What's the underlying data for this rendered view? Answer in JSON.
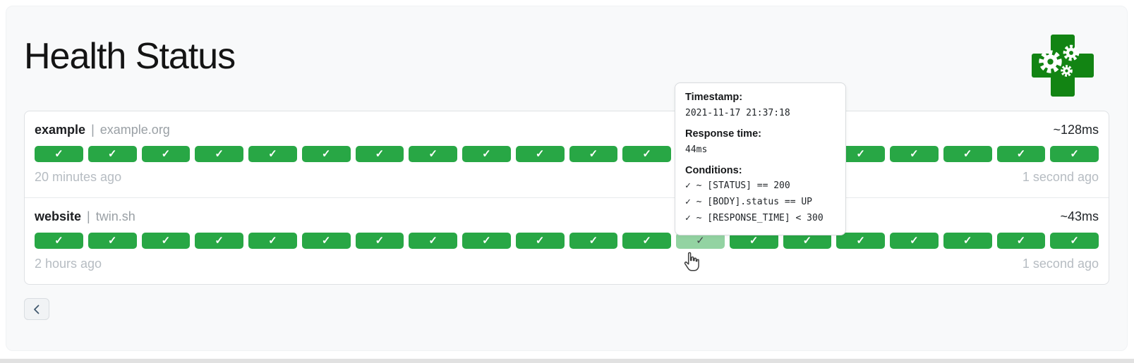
{
  "colors": {
    "green": "#28a745",
    "green-hover": "#93d3a2",
    "logo-green": "#128413"
  },
  "header": {
    "title": "Health Status"
  },
  "services": [
    {
      "name": "example",
      "separator": "|",
      "host": "example.org",
      "avg_response_time": "~128ms",
      "oldest_result": "20 minutes ago",
      "newest_result": "1 second ago",
      "bar_count": 20,
      "hovered_index": -1
    },
    {
      "name": "website",
      "separator": "|",
      "host": "twin.sh",
      "avg_response_time": "~43ms",
      "oldest_result": "2 hours ago",
      "newest_result": "1 second ago",
      "bar_count": 20,
      "hovered_index": 12
    }
  ],
  "tooltip": {
    "timestamp_label": "Timestamp:",
    "timestamp": "2021-11-17 21:37:18",
    "response_time_label": "Response time:",
    "response_time": "44ms",
    "conditions_label": "Conditions:",
    "conditions": [
      "✓ ~ [STATUS] == 200",
      "✓ ~ [BODY].status == UP",
      "✓ ~ [RESPONSE_TIME] < 300"
    ]
  },
  "pagination": {
    "previous_icon": "chevron-left"
  },
  "icons": {
    "check": "✓"
  }
}
